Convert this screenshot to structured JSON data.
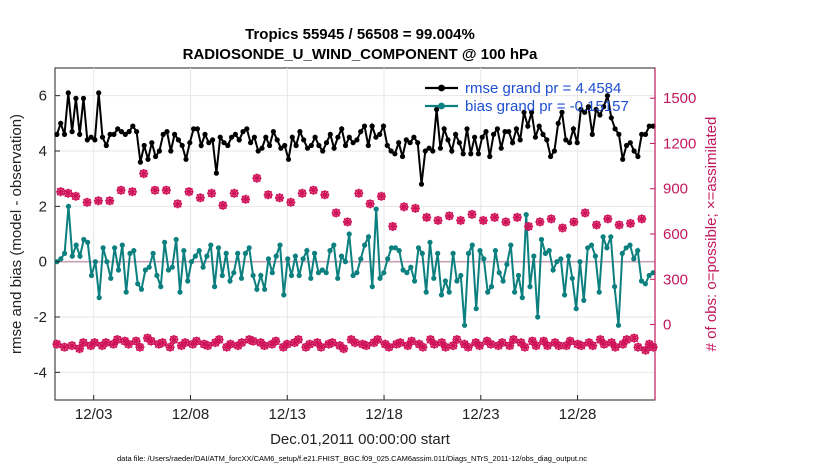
{
  "chart_data": {
    "type": "line",
    "title_line1": "Tropics 55945 / 56508 = 99.004%",
    "title_line2": "RADIOSONDE_U_WIND_COMPONENT @ 100 hPa",
    "xlabel": "Dec.01,2011 00:00:00 start",
    "ylabel_left": "rmse and bias (model - observation)",
    "ylabel_right": "# of obs: o=possible; ×=assimilated",
    "x_ticks": [
      {
        "label": "12/03",
        "day": 2
      },
      {
        "label": "12/08",
        "day": 7
      },
      {
        "label": "12/13",
        "day": 12
      },
      {
        "label": "12/18",
        "day": 17
      },
      {
        "label": "12/23",
        "day": 22
      },
      {
        "label": "12/28",
        "day": 27
      }
    ],
    "x_range_days": [
      0,
      31
    ],
    "y_left": {
      "range": [
        -5,
        7
      ],
      "ticks": [
        -4,
        -2,
        0,
        2,
        4,
        6
      ]
    },
    "y_right": {
      "range": [
        -500,
        1700
      ],
      "ticks": [
        0,
        300,
        600,
        900,
        1200,
        1500
      ]
    },
    "footnote": "data file: /Users/raeder/DAI/ATM_forcXX/CAM6_setup/f.e21.FHIST_BGC.f09_025.CAM6assim.011/Diags_NTrS_2011-12/obs_diag_output.nc",
    "series": [
      {
        "name": "rmse grand pr = 4.4584",
        "color": "#000000",
        "axis": "left",
        "values": [
          4.6,
          5.0,
          4.6,
          6.1,
          4.7,
          5.9,
          4.6,
          5.9,
          4.4,
          4.5,
          4.4,
          6.1,
          4.5,
          4.2,
          4.6,
          4.6,
          4.8,
          4.7,
          4.6,
          4.7,
          4.9,
          4.7,
          3.6,
          4.2,
          3.7,
          4.3,
          3.8,
          4.0,
          4.6,
          4.7,
          4.0,
          4.6,
          4.4,
          4.2,
          3.7,
          4.3,
          4.8,
          4.8,
          4.2,
          4.6,
          4.3,
          4.4,
          3.2,
          4.5,
          4.3,
          4.2,
          4.5,
          4.6,
          4.4,
          4.7,
          4.8,
          4.3,
          4.5,
          4.0,
          4.1,
          4.5,
          4.2,
          4.7,
          4.4,
          4.1,
          4.2,
          3.7,
          4.5,
          4.2,
          4.7,
          4.4,
          4.1,
          4.2,
          4.5,
          4.2,
          4.0,
          4.3,
          4.6,
          4.1,
          4.5,
          4.8,
          4.2,
          4.5,
          4.3,
          4.4,
          4.7,
          4.9,
          4.2,
          4.9,
          4.5,
          4.6,
          4.9,
          4.2,
          4.0,
          3.9,
          4.3,
          3.8,
          4.4,
          4.3,
          4.5,
          4.3,
          2.8,
          4.0,
          4.1,
          4.0,
          5.5,
          4.1,
          4.8,
          4.4,
          4.0,
          4.6,
          4.3,
          3.9,
          4.8,
          3.9,
          4.5,
          3.9,
          4.5,
          4.7,
          3.8,
          4.6,
          4.8,
          4.1,
          4.7,
          4.7,
          4.3,
          4.8,
          4.4,
          5.4,
          4.9,
          5.4,
          4.5,
          4.9,
          4.6,
          4.4,
          3.8,
          4.0,
          5.0,
          5.4,
          4.4,
          4.3,
          4.8,
          4.3,
          5.5,
          5.4,
          5.6,
          4.6,
          5.5,
          5.3,
          5.6,
          6.0,
          5.2,
          4.8,
          4.6,
          3.7,
          4.2,
          4.3,
          4.0,
          3.8,
          4.6,
          4.6,
          4.9,
          4.9
        ],
        "dash": ""
      },
      {
        "name": "bias grand pr = -0.15157",
        "color": "#0c7f7f",
        "axis": "left",
        "values": [
          0.0,
          0.1,
          0.3,
          2.0,
          0.2,
          0.6,
          0.2,
          0.8,
          0.7,
          -0.5,
          0.0,
          -1.3,
          0.5,
          0.0,
          -0.6,
          0.5,
          -0.3,
          0.6,
          -1.1,
          0.3,
          0.4,
          -0.8,
          -1.0,
          -0.3,
          -0.2,
          0.3,
          -0.5,
          -0.9,
          0.7,
          -0.3,
          -0.2,
          0.8,
          -1.1,
          0.4,
          -0.7,
          0.0,
          0.2,
          0.4,
          -0.2,
          0.2,
          0.6,
          -0.9,
          0.5,
          -0.5,
          0.3,
          -0.7,
          -0.4,
          0.3,
          -0.6,
          0.3,
          0.5,
          -0.5,
          -1.0,
          -0.5,
          -1.0,
          0.1,
          -0.4,
          0.2,
          0.6,
          -1.2,
          0.1,
          -0.5,
          0.2,
          -0.5,
          0.1,
          0.4,
          -0.6,
          0.3,
          -0.4,
          -0.3,
          -0.4,
          0.4,
          0.6,
          -0.6,
          0.2,
          0.0,
          1.0,
          -0.5,
          -0.4,
          0.1,
          0.6,
          0.9,
          -0.9,
          1.9,
          -0.6,
          -0.4,
          0.1,
          0.5,
          0.5,
          0.4,
          -0.3,
          -0.4,
          -0.2,
          -0.7,
          0.5,
          0.3,
          -1.1,
          0.7,
          -0.6,
          0.3,
          -1.2,
          -0.7,
          -1.1,
          0.3,
          -0.7,
          -0.5,
          -2.3,
          0.3,
          0.6,
          -1.7,
          0.4,
          0.1,
          -1.1,
          -0.9,
          0.4,
          -0.4,
          -0.7,
          -0.1,
          0.6,
          -1.1,
          -0.5,
          -1.3,
          1.7,
          -0.9,
          0.2,
          -2.0,
          0.8,
          0.3,
          0.4,
          -0.3,
          0.0,
          0.1,
          -1.2,
          0.2,
          -0.6,
          -1.7,
          0.0,
          -1.4,
          0.5,
          0.6,
          0.2,
          -1.1,
          0.9,
          0.5,
          0.9,
          -0.9,
          -2.3,
          0.3,
          0.5,
          0.6,
          0.1,
          0.4,
          -0.7,
          -0.8,
          -0.5,
          -0.4
        ],
        "dash": ""
      },
      {
        "name": "possible",
        "color": "#d0145a",
        "axis": "right",
        "marker": "circle",
        "values": [
          -130,
          880,
          -150,
          870,
          -140,
          850,
          -160,
          -120,
          810,
          -140,
          -120,
          820,
          -140,
          -120,
          820,
          -130,
          -100,
          890,
          -110,
          -130,
          880,
          -110,
          -150,
          1000,
          -90,
          -110,
          890,
          -130,
          -120,
          890,
          -150,
          -100,
          800,
          -140,
          -120,
          880,
          -130,
          -110,
          840,
          -130,
          -140,
          870,
          -120,
          -100,
          790,
          -150,
          -130,
          870,
          -140,
          -120,
          830,
          -100,
          -110,
          970,
          -120,
          -140,
          860,
          -130,
          -110,
          840,
          -150,
          -130,
          810,
          -120,
          -100,
          870,
          -150,
          -130,
          890,
          -120,
          -150,
          860,
          -130,
          -120,
          740,
          -140,
          -160,
          680,
          -100,
          -120,
          870,
          -130,
          -140,
          800,
          -120,
          -100,
          850,
          -130,
          -150,
          650,
          -130,
          -120,
          780,
          -140,
          -110,
          770,
          -130,
          -150,
          710,
          -100,
          -130,
          690,
          -120,
          -150,
          720,
          -140,
          -100,
          690,
          -130,
          -150,
          730,
          -120,
          -140,
          690,
          -110,
          -130,
          710,
          -140,
          -120,
          680,
          -140,
          -100,
          710,
          -120,
          -150,
          650,
          -110,
          -140,
          680,
          -110,
          -140,
          700,
          -120,
          -140,
          640,
          -140,
          -110,
          680,
          -130,
          -140,
          740,
          -120,
          -140,
          660,
          -100,
          -130,
          700,
          -120,
          -150,
          660,
          -130,
          -100,
          670,
          -90,
          -150,
          700,
          -170,
          -130,
          -150
        ],
        "dash": ""
      },
      {
        "name": "assimilated",
        "color": "#d0145a",
        "axis": "right",
        "marker": "cross",
        "values": [
          -130,
          880,
          -150,
          870,
          -140,
          850,
          -160,
          -120,
          810,
          -140,
          -120,
          820,
          -140,
          -120,
          820,
          -130,
          -100,
          890,
          -110,
          -130,
          880,
          -110,
          -150,
          1000,
          -90,
          -110,
          890,
          -130,
          -120,
          890,
          -150,
          -100,
          800,
          -140,
          -120,
          880,
          -130,
          -110,
          840,
          -130,
          -140,
          870,
          -120,
          -100,
          790,
          -150,
          -130,
          870,
          -140,
          -120,
          830,
          -100,
          -110,
          970,
          -120,
          -140,
          860,
          -130,
          -110,
          840,
          -150,
          -130,
          810,
          -120,
          -100,
          870,
          -150,
          -130,
          890,
          -120,
          -150,
          860,
          -130,
          -120,
          740,
          -140,
          -160,
          680,
          -100,
          -120,
          870,
          -130,
          -140,
          800,
          -120,
          -100,
          850,
          -130,
          -150,
          650,
          -130,
          -120,
          780,
          -140,
          -110,
          770,
          -130,
          -150,
          710,
          -100,
          -130,
          690,
          -120,
          -150,
          720,
          -140,
          -100,
          690,
          -130,
          -150,
          730,
          -120,
          -140,
          690,
          -110,
          -130,
          710,
          -140,
          -120,
          680,
          -140,
          -100,
          710,
          -120,
          -150,
          650,
          -110,
          -140,
          680,
          -110,
          -140,
          700,
          -120,
          -140,
          640,
          -140,
          -110,
          680,
          -130,
          -140,
          740,
          -120,
          -140,
          660,
          -100,
          -130,
          700,
          -120,
          -150,
          660,
          -130,
          -100,
          670,
          -90,
          -150,
          700,
          -170,
          -130,
          -150
        ],
        "dash": ""
      }
    ],
    "legend": [
      {
        "label": "rmse grand pr = 4.4584",
        "color": "#000000"
      },
      {
        "label": "bias grand pr = -0.15157",
        "color": "#0c7f7f"
      }
    ]
  }
}
